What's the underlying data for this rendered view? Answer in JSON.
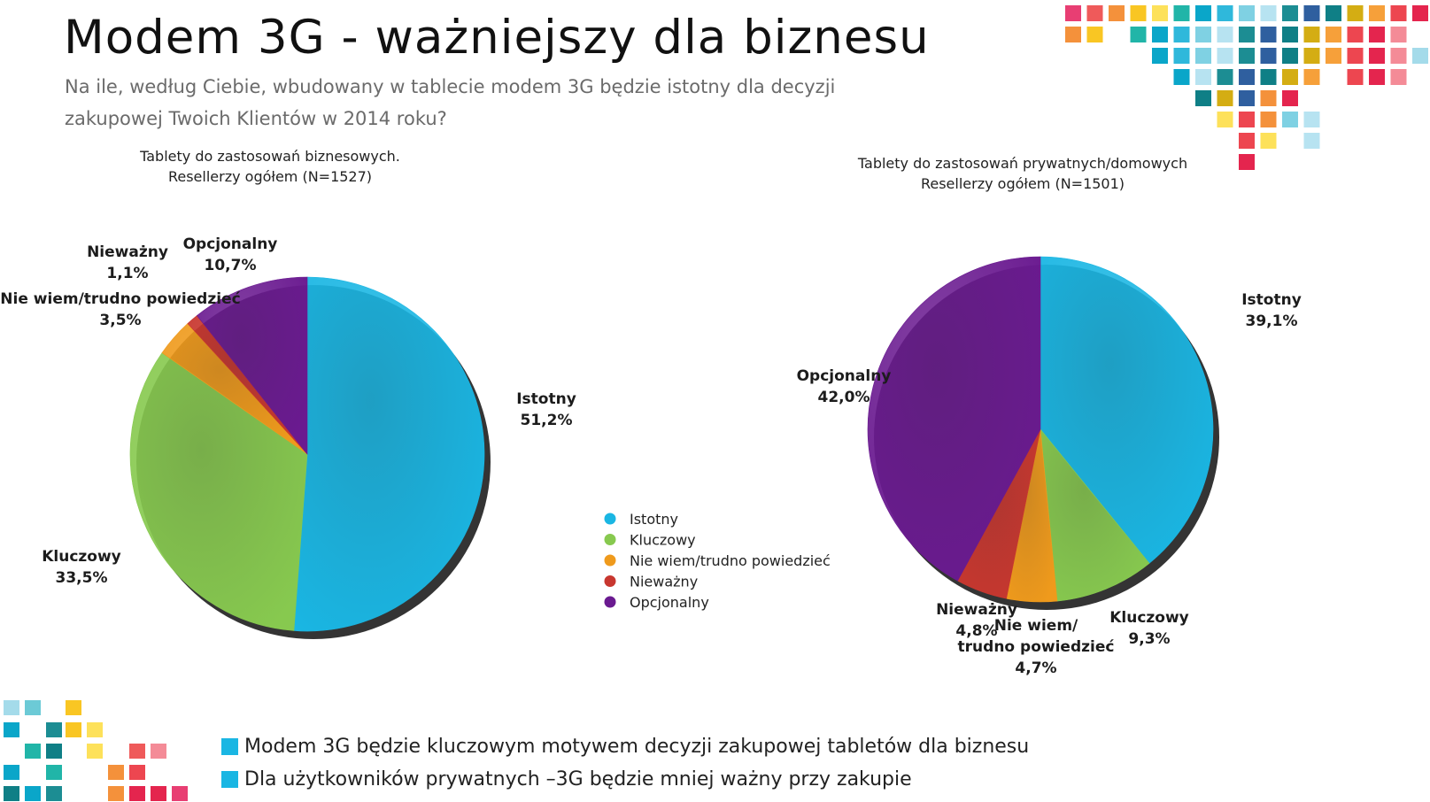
{
  "title": "Modem 3G  - ważniejszy dla biznesu",
  "subtitle": "Na ile, według Ciebie, wbudowany w tablecie modem 3G będzie istotny dla decyzji zakupowej Twoich Klientów w 2014 roku?",
  "colors": {
    "Istotny": "#1ab6e3",
    "Kluczowy": "#87c94f",
    "Nie wiem/trudno powiedzieć": "#ef9a1c",
    "Nieważny": "#c8372f",
    "Opcjonalny": "#6a1a90",
    "bullet": "#1ab6e3"
  },
  "legend": [
    "Istotny",
    "Kluczowy",
    "Nie wiem/trudno powiedzieć",
    "Nieważny",
    "Opcjonalny"
  ],
  "chart_data": [
    {
      "type": "pie",
      "title_line1": "Tablety do zastosowań biznesowych.",
      "title_line2": "Resellerzy ogółem (N=1527)",
      "slices": [
        {
          "label": "Istotny",
          "value": 51.2,
          "display": "51,2%"
        },
        {
          "label": "Kluczowy",
          "value": 33.5,
          "display": "33,5%"
        },
        {
          "label": "Nie wiem/trudno powiedzieć",
          "value": 3.5,
          "display": "3,5%"
        },
        {
          "label": "Nieważny",
          "value": 1.1,
          "display": "1,1%"
        },
        {
          "label": "Opcjonalny",
          "value": 10.7,
          "display": "10,7%"
        }
      ]
    },
    {
      "type": "pie",
      "title_line1": "Tablety do zastosowań prywatnych/domowych",
      "title_line2": "Resellerzy ogółem (N=1501)",
      "slices": [
        {
          "label": "Istotny",
          "value": 39.1,
          "display": "39,1%"
        },
        {
          "label": "Kluczowy",
          "value": 9.3,
          "display": "9,3%"
        },
        {
          "label": "Nie wiem/trudno powiedzieć",
          "label_lines": [
            "Nie wiem/",
            "trudno powiedzieć"
          ],
          "value": 4.7,
          "display": "4,7%"
        },
        {
          "label": "Nieważny",
          "value": 4.8,
          "display": "4,8%"
        },
        {
          "label": "Opcjonalny",
          "value": 42.0,
          "display": "42,0%"
        }
      ]
    }
  ],
  "bullets": [
    "Modem 3G będzie kluczowym motywem decyzji zakupowej tabletów dla biznesu",
    "Dla użytkowników prywatnych –3G będzie mniej ważny przy zakupie"
  ]
}
